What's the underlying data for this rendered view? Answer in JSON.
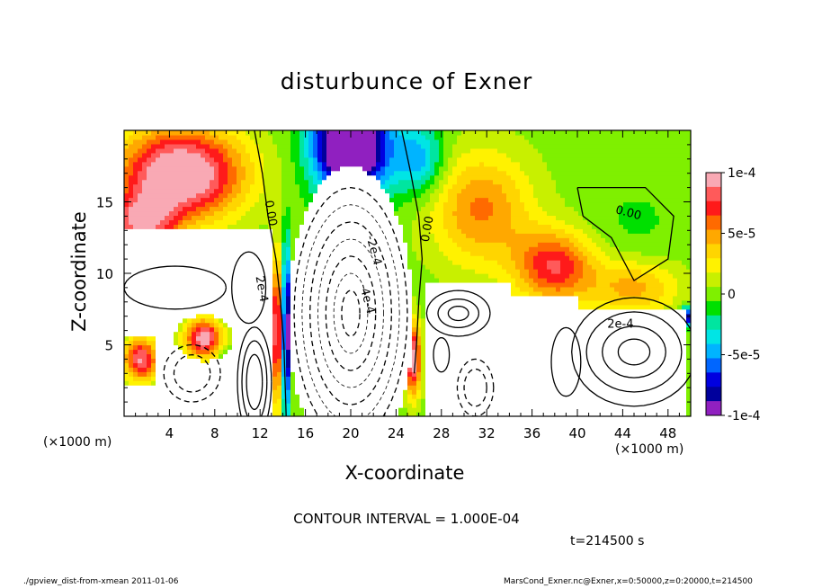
{
  "chart_data": {
    "type": "heatmap",
    "title": "disturbunce of Exner",
    "xlabel": "X-coordinate",
    "ylabel": "Z-coordinate",
    "x_unit": "(×1000 m)",
    "z_unit": "(×1000 m)",
    "xlim": [
      0,
      50
    ],
    "ylim": [
      0,
      20
    ],
    "x_ticks": [
      4,
      8,
      12,
      16,
      20,
      24,
      28,
      32,
      36,
      40,
      44,
      48
    ],
    "y_ticks": [
      5,
      10,
      15
    ],
    "colorbar": {
      "range": [
        -0.0001,
        0.0001
      ],
      "tick_labels": [
        "1e-4",
        "5e-5",
        "0",
        "-5e-5",
        "-1e-4"
      ],
      "colors": [
        "#f9a9b4",
        "#ff5a5a",
        "#ff1a1a",
        "#ff6a00",
        "#ffa800",
        "#ffd500",
        "#fff200",
        "#c8f000",
        "#7ff000",
        "#00e000",
        "#00e5a0",
        "#00e5e5",
        "#00b4ff",
        "#0066ff",
        "#0000e0",
        "#00009c",
        "#9020c0"
      ]
    },
    "contour_labels": [
      {
        "text": "0.00",
        "x": 12.9,
        "z": 14.2,
        "rotate": 80
      },
      {
        "text": "2e-4",
        "x": 12.1,
        "z": 8.9,
        "rotate": 80
      },
      {
        "text": "0.00",
        "x": 26.8,
        "z": 13.1,
        "rotate": -80
      },
      {
        "text": "-2e-4",
        "x": 22.0,
        "z": 11.6,
        "rotate": 75
      },
      {
        "text": "-4e-4",
        "x": 21.4,
        "z": 8.2,
        "rotate": 75
      },
      {
        "text": "0.00",
        "x": 44.5,
        "z": 14.2,
        "rotate": 15
      },
      {
        "text": "2e-4",
        "x": 43.8,
        "z": 6.4,
        "rotate": 0
      }
    ],
    "contour_interval": "CONTOUR INTERVAL = 1.000E-04",
    "time": "t=214500 s"
  },
  "footer": {
    "left": "./gpview_dist-from-xmean  2011-01-06",
    "right": "MarsCond_Exner.nc@Exner,x=0:50000,z=0:20000,t=214500"
  }
}
